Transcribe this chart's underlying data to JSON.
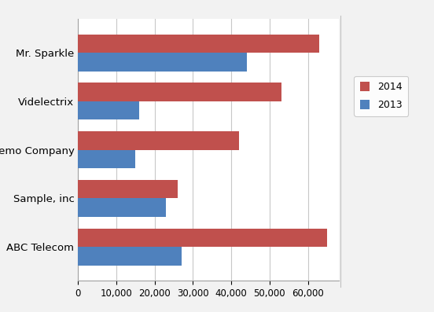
{
  "categories": [
    "ABC Telecom",
    "Sample, inc",
    "Demo Company",
    "Videlectrix",
    "Mr. Sparkle"
  ],
  "values_2014": [
    65000,
    26000,
    42000,
    53000,
    63000
  ],
  "values_2013": [
    27000,
    23000,
    15000,
    16000,
    44000
  ],
  "color_2014": "#C0504D",
  "color_2013": "#4F81BD",
  "legend_labels": [
    "2014",
    "2013"
  ],
  "xlim": [
    0,
    68000
  ],
  "xticks": [
    0,
    10000,
    20000,
    30000,
    40000,
    50000,
    60000
  ],
  "bar_height": 0.38,
  "background_color": "#F2F2F2",
  "plot_bg_color": "#FFFFFF",
  "grid_color": "#C8C8C8",
  "tick_fontsize": 8.5,
  "label_fontsize": 9.5
}
